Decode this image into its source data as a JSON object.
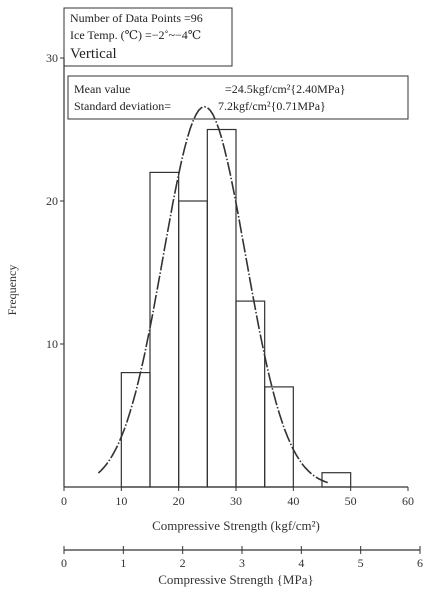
{
  "chart_data": {
    "type": "bar",
    "title_box": {
      "line1": "Number of Data Points =96",
      "line2": "Ice Temp. (℃) =−2˚~−4℃",
      "line3": "Vertical"
    },
    "stats_box": {
      "line1_label": "Mean value",
      "line1_value": "=24.5kgf/cm²{2.40MPa}",
      "line2_label": "Standard deviation=",
      "line2_value": "7.2kgf/cm²{0.71MPa}"
    },
    "ylabel": "Frequency",
    "xlabel": "Compressive Strength (kgf/cm²)",
    "xlabel2": "Compressive Strength {MPa}",
    "xlim": [
      0,
      60
    ],
    "ylim": [
      0,
      30
    ],
    "x_ticks": [
      "0",
      "10",
      "20",
      "30",
      "40",
      "50",
      "60"
    ],
    "y_ticks": [
      "10",
      "20",
      "30"
    ],
    "x2_ticks": [
      "0",
      "1",
      "2",
      "3",
      "4",
      "5",
      "6"
    ],
    "bins": [
      {
        "start": 10,
        "end": 15,
        "value": 8
      },
      {
        "start": 15,
        "end": 20,
        "value": 22
      },
      {
        "start": 20,
        "end": 25,
        "value": 20
      },
      {
        "start": 25,
        "end": 30,
        "value": 25
      },
      {
        "start": 30,
        "end": 35,
        "value": 13
      },
      {
        "start": 35,
        "end": 40,
        "value": 7
      },
      {
        "start": 45,
        "end": 50,
        "value": 1
      }
    ],
    "normal_curve": {
      "mean": 24.5,
      "std": 7.2,
      "n": 96,
      "bin_width": 5
    }
  }
}
